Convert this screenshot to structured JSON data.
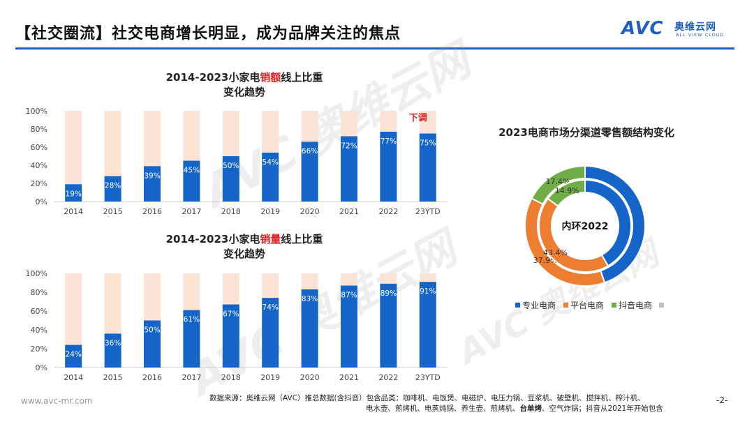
{
  "header": {
    "title": "【社交圈流】社交电商增长明显，成为品牌关注的焦点",
    "logo_avc": "AVC",
    "logo_cn": "奥维云网",
    "logo_en": "ALL VIEW CLOUD"
  },
  "colors": {
    "accent": "#1f5fbf",
    "bar_fill": "#1565c8",
    "bar_bg": "#fbe3d6",
    "highlight": "#e02020",
    "donut_blue": "#1565c8",
    "donut_orange": "#ed7d31",
    "donut_green": "#70ad47"
  },
  "watermark": {
    "text": "AVC 奥维云网",
    "sub": "ALL VIEW CLOUD"
  },
  "chart_data": [
    {
      "type": "bar",
      "title_pre": "2014-2023小家电",
      "title_hl": "销额",
      "title_post": "线上比重",
      "title_line2": "变化趋势",
      "categories": [
        "2014",
        "2015",
        "2016",
        "2017",
        "2018",
        "2019",
        "2020",
        "2021",
        "2022",
        "23YTD"
      ],
      "values": [
        19,
        28,
        39,
        45,
        50,
        54,
        66,
        72,
        77,
        75
      ],
      "value_labels": [
        "19%",
        "28%",
        "39%",
        "45%",
        "50%",
        "54%",
        "66%",
        "72%",
        "77%",
        "75%"
      ],
      "yticks": [
        "0%",
        "20%",
        "40%",
        "60%",
        "80%",
        "100%"
      ],
      "ylim": [
        0,
        100
      ],
      "annotation": "下调"
    },
    {
      "type": "bar",
      "title_pre": "2014-2023小家电",
      "title_hl": "销量",
      "title_post": "线上比重",
      "title_line2": "变化趋势",
      "categories": [
        "2014",
        "2015",
        "2016",
        "2017",
        "2018",
        "2019",
        "2020",
        "2021",
        "2022",
        "23YTD"
      ],
      "values": [
        24,
        36,
        50,
        61,
        67,
        74,
        83,
        87,
        89,
        91
      ],
      "value_labels": [
        "24%",
        "36%",
        "50%",
        "61%",
        "67%",
        "74%",
        "83%",
        "87%",
        "89%",
        "91%"
      ],
      "yticks": [
        "0%",
        "20%",
        "40%",
        "60%",
        "80%",
        "100%"
      ],
      "ylim": [
        0,
        100
      ]
    },
    {
      "type": "pie",
      "title": "2023电商市场分渠道零售额结构变化",
      "center_label": "内环2022",
      "legend": [
        "专业电商",
        "平台电商",
        "抖音电商",
        ""
      ],
      "outer": {
        "values": [
          44.7,
          37.9,
          17.4
        ],
        "labels": [
          "",
          "37.9%",
          "17.4%"
        ]
      },
      "inner": {
        "values": [
          41.7,
          43.4,
          14.9
        ],
        "labels": [
          "",
          "43.4%",
          "14.9%"
        ]
      }
    }
  ],
  "footer": {
    "url": "www.avc-mr.com",
    "source_line1": "数据来源：奥维云网（AVC）推总数据(含抖音）包含品类：咖啡机、电饭煲、电磁炉、电压力锅、豆浆机、破壁机、搅拌机、榨汁机、",
    "source_line2a": "电水壶、煎烤机、电蒸炖锅、养生壶、煎烤机、",
    "source_line2b": "台单烤",
    "source_line2c": "、空气炸锅；抖音从2021年开始包含",
    "page": "-2-"
  }
}
